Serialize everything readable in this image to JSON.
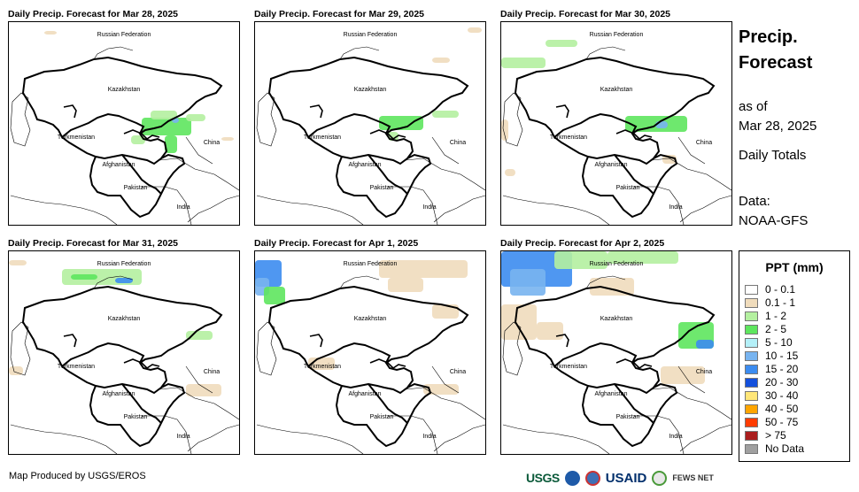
{
  "panels": [
    {
      "title": "Daily Precip. Forecast for Mar 28, 2025"
    },
    {
      "title": "Daily Precip. Forecast for Mar 29, 2025"
    },
    {
      "title": "Daily Precip. Forecast for Mar 30, 2025"
    },
    {
      "title": "Daily Precip. Forecast for Mar 31, 2025"
    },
    {
      "title": "Daily Precip. Forecast for Apr 1, 2025"
    },
    {
      "title": "Daily Precip. Forecast for Apr 2, 2025"
    }
  ],
  "map_labels": {
    "russia": "Russian Federation",
    "kazakhstan": "Kazakhstan",
    "turkmenistan": "Turkmenistan",
    "afghanistan": "Afghanistan",
    "pakistan": "Pakistan",
    "china": "China",
    "india": "India"
  },
  "side": {
    "title_line1": "Precip.",
    "title_line2": "Forecast",
    "asof_line1": "as of",
    "asof_line2": "Mar 28, 2025",
    "totals": "Daily Totals",
    "data_line1": "Data:",
    "data_line2": "NOAA-GFS"
  },
  "legend": {
    "title": "PPT (mm)",
    "items": [
      {
        "label": "0 - 0.1",
        "color": "#ffffff"
      },
      {
        "label": "0.1 - 1",
        "color": "#f0dcbc"
      },
      {
        "label": "1 - 2",
        "color": "#b4f0a0"
      },
      {
        "label": "2 - 5",
        "color": "#5ee65e"
      },
      {
        "label": "5 - 10",
        "color": "#b4f0f8"
      },
      {
        "label": "10 - 15",
        "color": "#78b4f0"
      },
      {
        "label": "15 - 20",
        "color": "#3c8cf0"
      },
      {
        "label": "20 - 30",
        "color": "#1450dc"
      },
      {
        "label": "30 - 40",
        "color": "#ffe678"
      },
      {
        "label": "40 - 50",
        "color": "#ffa500"
      },
      {
        "label": "50 - 75",
        "color": "#ff3c00"
      },
      {
        "label": "> 75",
        "color": "#aa1e1e"
      },
      {
        "label": "No Data",
        "color": "#a0a0a0"
      }
    ]
  },
  "footer": {
    "credit": "Map Produced by USGS/EROS",
    "logo_usgs": "USGS",
    "logo_usaid": "USAID",
    "logo_fews": "FEWS NET"
  }
}
